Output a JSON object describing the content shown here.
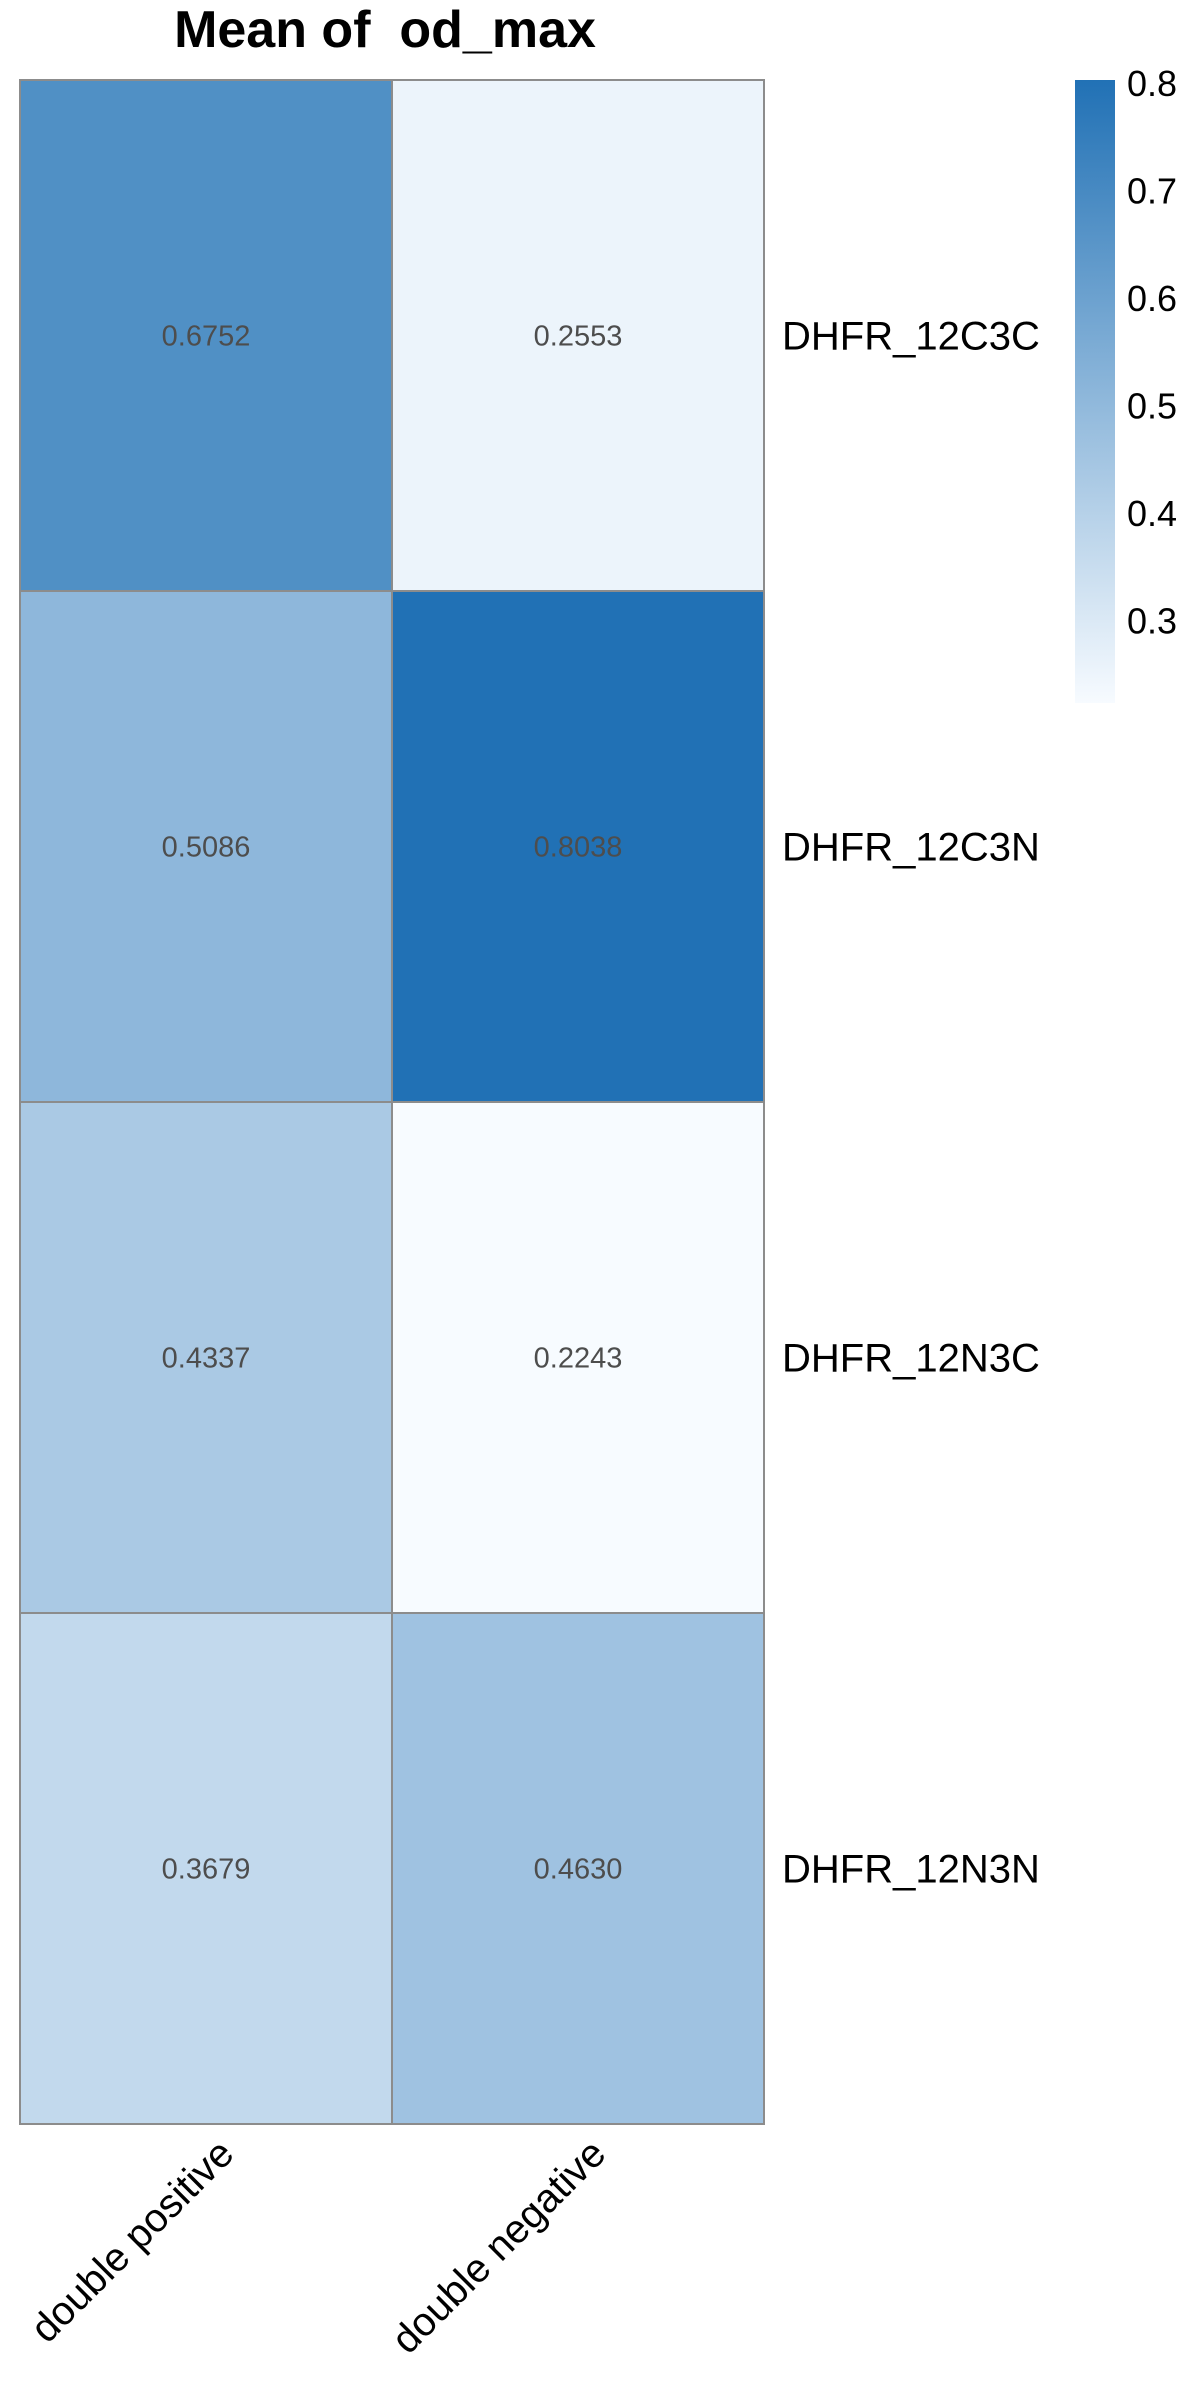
{
  "chart_data": {
    "type": "heatmap",
    "title": "Mean of  od_max",
    "rows": [
      "DHFR_12C3C",
      "DHFR_12C3N",
      "DHFR_12N3C",
      "DHFR_12N3N"
    ],
    "columns": [
      "double positive",
      "double negative"
    ],
    "values": [
      [
        0.6752,
        0.2553
      ],
      [
        0.5086,
        0.8038
      ],
      [
        0.4337,
        0.2243
      ],
      [
        0.3679,
        0.463
      ]
    ],
    "cell_labels": [
      [
        "0.6752",
        "0.2553"
      ],
      [
        "0.5086",
        "0.8038"
      ],
      [
        "0.4337",
        "0.2243"
      ],
      [
        "0.3679",
        "0.4630"
      ]
    ],
    "color_scale": {
      "min": 0.2243,
      "max": 0.8038,
      "low_color": "#F7FBFF",
      "high_color": "#2171B5",
      "colormap": "Blues",
      "ticks": [
        0.3,
        0.4,
        0.5,
        0.6,
        0.7,
        0.8
      ],
      "tick_labels": [
        "0.3",
        "0.4",
        "0.5",
        "0.6",
        "0.7",
        "0.8"
      ]
    },
    "legend_position": "right",
    "grid": true,
    "grid_color": "#8c8c8c"
  }
}
